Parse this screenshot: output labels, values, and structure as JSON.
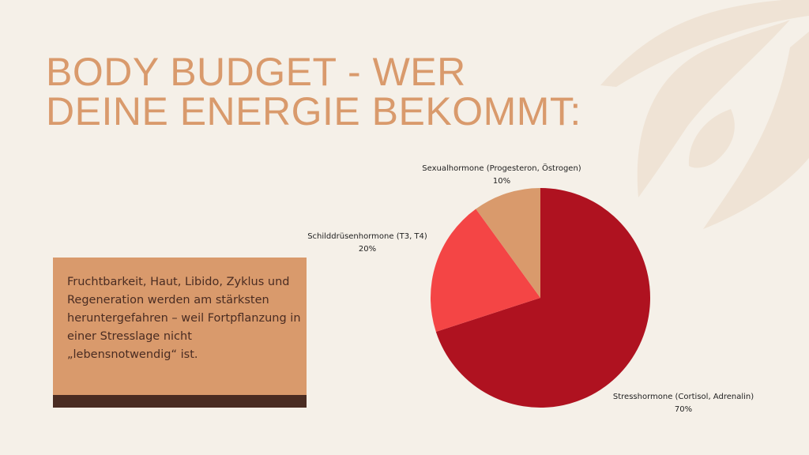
{
  "title": {
    "line1": "BODY BUDGET - WER",
    "line2": "DEINE ENERGIE BEKOMMT:"
  },
  "card": {
    "text": "Fruchtbarkeit, Haut, Libido, Zyklus und Regeneration werden am stärksten heruntergefahren – weil Fortpflanzung in einer Stresslage nicht „lebensnotwendig“ ist."
  },
  "colors": {
    "background": "#f5f0e8",
    "accent": "#d99a6c",
    "dark": "#4a2c22",
    "stress": "#af1220",
    "thyroid": "#f44545",
    "sexual": "#d99a6c"
  },
  "chart_data": {
    "type": "pie",
    "title": "",
    "categories": [
      "Stresshormone (Cortisol, Adrenalin)",
      "Schilddrüsenhormone (T3, T4)",
      "Sexualhormone (Progesteron, Östrogen)"
    ],
    "values": [
      70,
      20,
      10
    ],
    "labels": [
      {
        "name": "Stresshormone (Cortisol, Adrenalin)",
        "pct": "70%"
      },
      {
        "name": "Schilddrüsenhormone (T3, T4)",
        "pct": "20%"
      },
      {
        "name": "Sexualhormone (Progesteron, Östrogen)",
        "pct": "10%"
      }
    ],
    "colors": [
      "#af1220",
      "#f44545",
      "#d99a6c"
    ],
    "legend": "none (data labels outside slices)"
  }
}
